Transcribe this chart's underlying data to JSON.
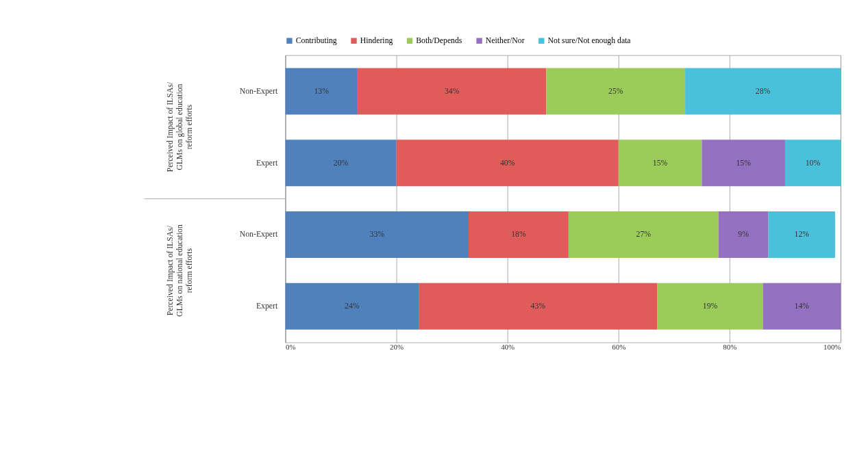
{
  "chart_data": {
    "type": "bar",
    "orientation": "horizontal",
    "stacked": true,
    "categories": [
      "Non-Expert",
      "Expert",
      "Non-Expert",
      "Expert"
    ],
    "series": [
      {
        "name": "Contributing",
        "color": "#4f81bd",
        "values": [
          13,
          20,
          33,
          24
        ],
        "value_labels": [
          "13%",
          "20%",
          "33%",
          "24%"
        ]
      },
      {
        "name": "Hindering",
        "color": "#e05c5a",
        "values": [
          34,
          40,
          18,
          43
        ],
        "value_labels": [
          "34%",
          "40%",
          "18%",
          "43%"
        ]
      },
      {
        "name": "Both/Depends",
        "color": "#9bcb59",
        "values": [
          25,
          15,
          27,
          19
        ],
        "value_labels": [
          "25%",
          "15%",
          "27%",
          "19%"
        ]
      },
      {
        "name": "Neither/Nor",
        "color": "#9370c0",
        "values": [
          null,
          15,
          9,
          14
        ],
        "value_labels": [
          null,
          "15%",
          "9%",
          "14%"
        ]
      },
      {
        "name": "Not sure/Not enough data",
        "color": "#4bc0da",
        "values": [
          28,
          10,
          12,
          null
        ],
        "value_labels": [
          "28%",
          "10%",
          "12%",
          null
        ]
      }
    ],
    "xlim": [
      0,
      100
    ],
    "xticks": [
      {
        "value": 0,
        "label": "0%"
      },
      {
        "value": 20,
        "label": "20%"
      },
      {
        "value": 40,
        "label": "40%"
      },
      {
        "value": 60,
        "label": "60%"
      },
      {
        "value": 80,
        "label": "80%"
      },
      {
        "value": 100,
        "label": "100%"
      }
    ],
    "grid": "x",
    "legend": "top",
    "annotations": [
      "Perceived Impact of ILSAs/ GLMs on global education reform efforts",
      "Perceived Impact of ILSAs/ GLMs on national education reform efforts"
    ]
  }
}
